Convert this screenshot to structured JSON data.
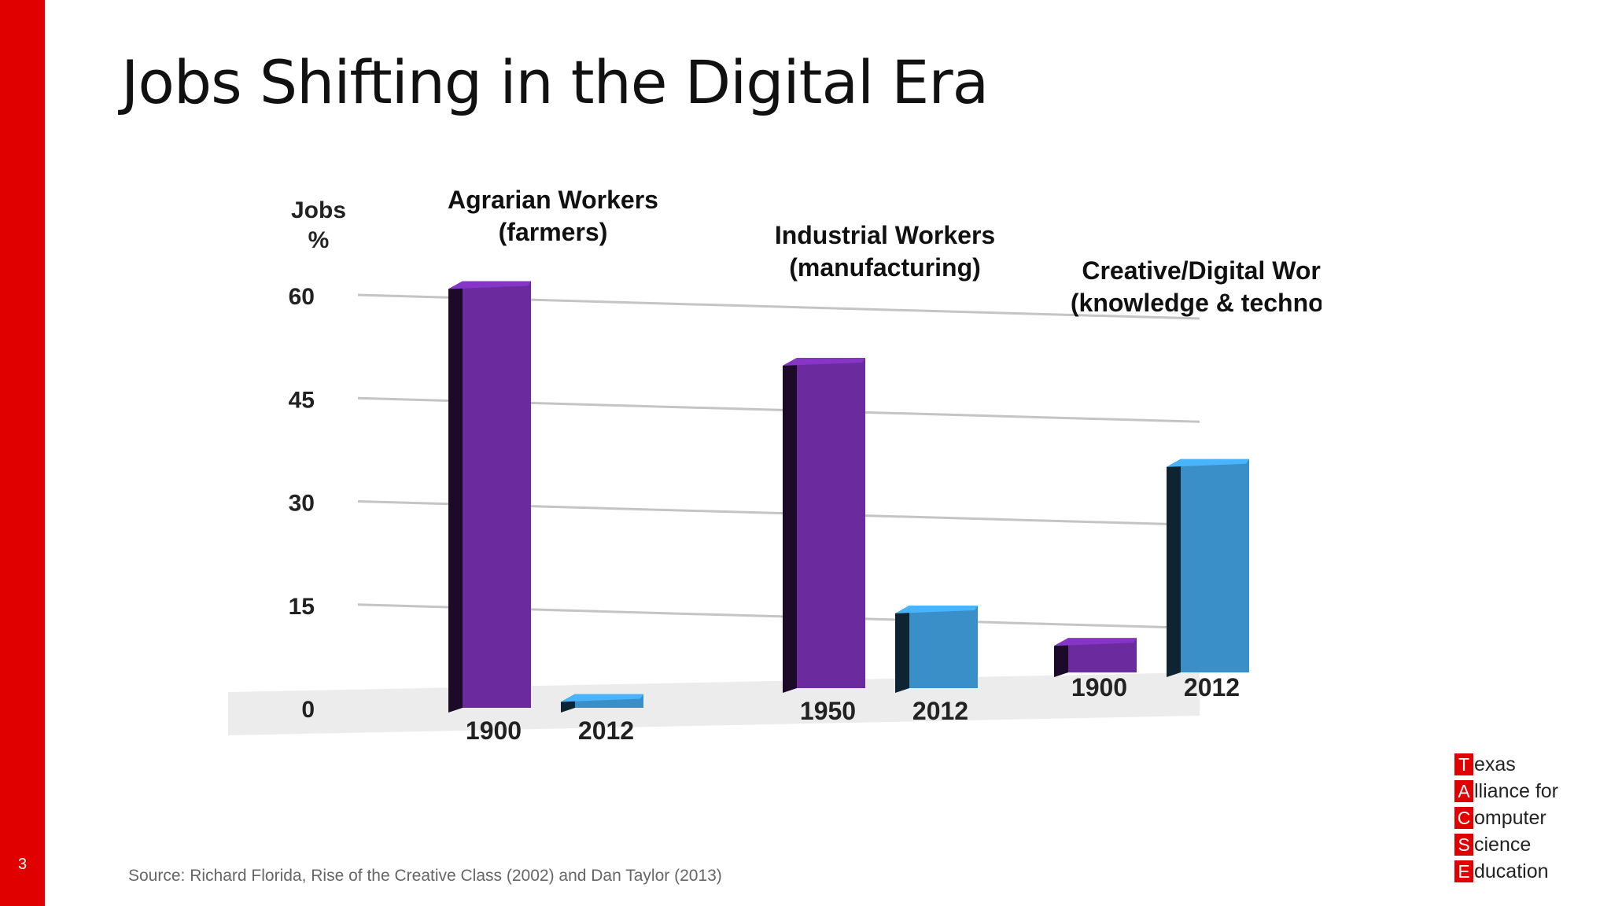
{
  "slide": {
    "title": "Jobs Shifting in the Digital Era",
    "number": "3",
    "source": "Source: Richard Florida, Rise of the Creative Class (2002) and Dan Taylor (2013)",
    "accent_color": "#e00000"
  },
  "logo": {
    "rows": [
      {
        "letter": "T",
        "rest": "exas"
      },
      {
        "letter": "A",
        "rest": "lliance for"
      },
      {
        "letter": "C",
        "rest": "omputer"
      },
      {
        "letter": "S",
        "rest": "cience"
      },
      {
        "letter": "E",
        "rest": "ducation"
      }
    ]
  },
  "chart_data": {
    "type": "bar",
    "ylabel": "Jobs %",
    "ylim": [
      0,
      60
    ],
    "yticks": [
      0,
      15,
      30,
      45,
      60
    ],
    "grid": true,
    "groups": [
      {
        "label_lines": [
          "Agrarian Workers",
          "(farmers)"
        ],
        "bars": [
          {
            "x": "1900",
            "value": 62,
            "color": "#6b2a9e"
          },
          {
            "x": "2012",
            "value": 2,
            "color": "#3a8fc9"
          }
        ]
      },
      {
        "label_lines": [
          "Industrial Workers",
          "(manufacturing)"
        ],
        "bars": [
          {
            "x": "1950",
            "value": 48,
            "color": "#6b2a9e"
          },
          {
            "x": "2012",
            "value": 12,
            "color": "#3a8fc9"
          }
        ]
      },
      {
        "label_lines": [
          "Creative/Digital Workers",
          "(knowledge & technology)"
        ],
        "bars": [
          {
            "x": "1900",
            "value": 5,
            "color": "#6b2a9e"
          },
          {
            "x": "2012",
            "value": 31,
            "color": "#3a8fc9"
          }
        ]
      }
    ]
  }
}
